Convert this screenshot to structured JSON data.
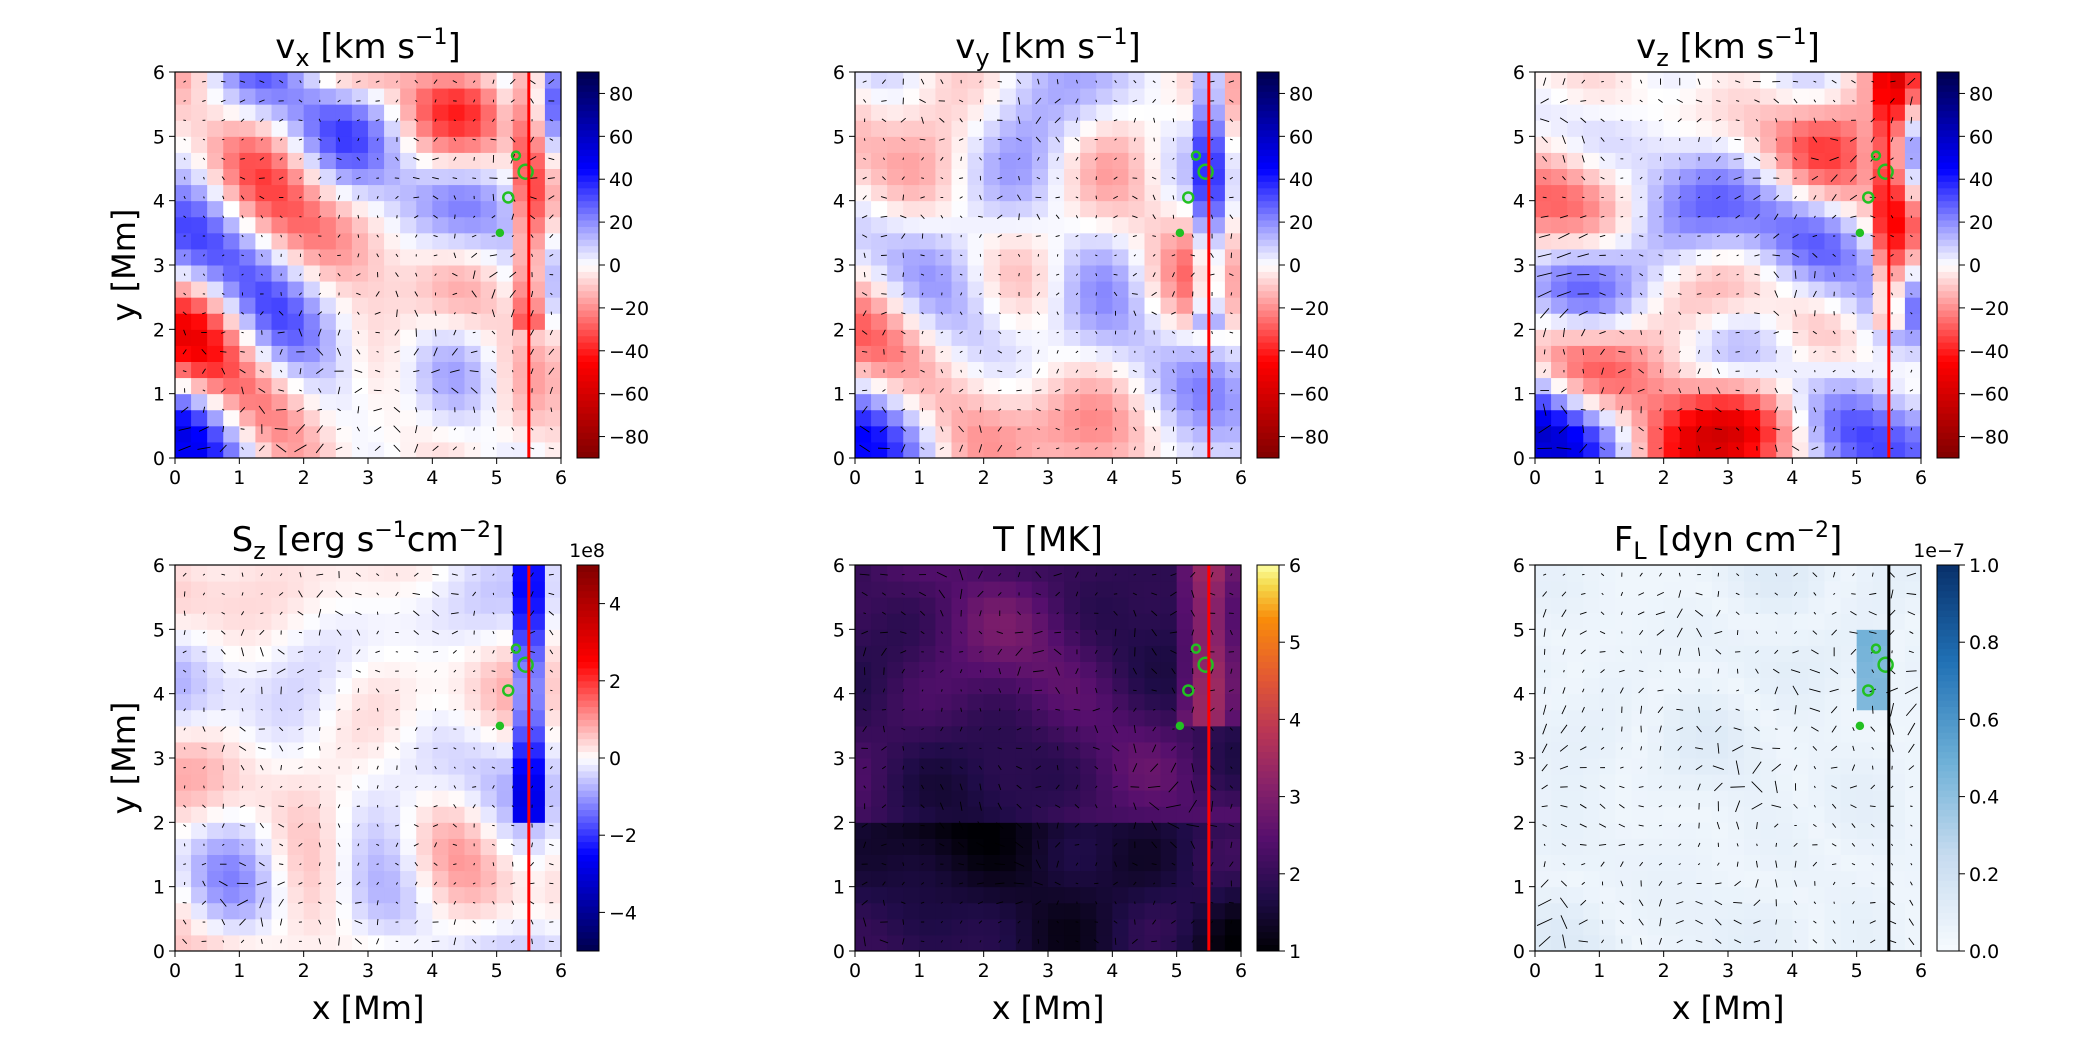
{
  "chart_data": [
    {
      "type": "heatmap",
      "title_main": "v",
      "title_sub": "x",
      "title_unit": "[km s",
      "title_exp": "−1",
      "title_end": "]",
      "ylabel": "y [Mm]",
      "xlabel": "",
      "xlim": [
        0,
        6
      ],
      "ylim": [
        0,
        6
      ],
      "xticks": [
        "0",
        "1",
        "2",
        "3",
        "4",
        "5",
        "6"
      ],
      "yticks": [
        "0",
        "1",
        "2",
        "3",
        "4",
        "5",
        "6"
      ],
      "colormap": "seismic_r",
      "colorbar": {
        "range": [
          -90,
          90
        ],
        "ticks": [
          "−80",
          "−60",
          "−40",
          "−20",
          "0",
          "20",
          "40",
          "60",
          "80"
        ],
        "tick_values": [
          -80,
          -60,
          -40,
          -20,
          0,
          20,
          40,
          60,
          80
        ],
        "offset": ""
      },
      "marker_line": {
        "x": 5.5,
        "color": "#ff0000"
      }
    },
    {
      "type": "heatmap",
      "title_main": "v",
      "title_sub": "y",
      "title_unit": "[km s",
      "title_exp": "−1",
      "title_end": "]",
      "ylabel": "",
      "xlabel": "",
      "xlim": [
        0,
        6
      ],
      "ylim": [
        0,
        6
      ],
      "xticks": [
        "0",
        "1",
        "2",
        "3",
        "4",
        "5",
        "6"
      ],
      "yticks": [
        "0",
        "1",
        "2",
        "3",
        "4",
        "5",
        "6"
      ],
      "colormap": "seismic_r",
      "colorbar": {
        "range": [
          -90,
          90
        ],
        "ticks": [
          "−80",
          "−60",
          "−40",
          "−20",
          "0",
          "20",
          "40",
          "60",
          "80"
        ],
        "tick_values": [
          -80,
          -60,
          -40,
          -20,
          0,
          20,
          40,
          60,
          80
        ],
        "offset": ""
      },
      "marker_line": {
        "x": 5.5,
        "color": "#ff0000"
      }
    },
    {
      "type": "heatmap",
      "title_main": "v",
      "title_sub": "z",
      "title_unit": "[km s",
      "title_exp": "−1",
      "title_end": "]",
      "ylabel": "",
      "xlabel": "",
      "xlim": [
        0,
        6
      ],
      "ylim": [
        0,
        6
      ],
      "xticks": [
        "0",
        "1",
        "2",
        "3",
        "4",
        "5",
        "6"
      ],
      "yticks": [
        "0",
        "1",
        "2",
        "3",
        "4",
        "5",
        "6"
      ],
      "colormap": "seismic_r",
      "colorbar": {
        "range": [
          -90,
          90
        ],
        "ticks": [
          "−80",
          "−60",
          "−40",
          "−20",
          "0",
          "20",
          "40",
          "60",
          "80"
        ],
        "tick_values": [
          -80,
          -60,
          -40,
          -20,
          0,
          20,
          40,
          60,
          80
        ],
        "offset": ""
      },
      "marker_line": {
        "x": 5.5,
        "color": "#ff0000"
      }
    },
    {
      "type": "heatmap",
      "title_main": "S",
      "title_sub": "z",
      "title_unit": "[erg s",
      "title_exp": "−1",
      "title_end": "cm",
      "title_exp2": "−2",
      "title_end2": "]",
      "ylabel": "y [Mm]",
      "xlabel": "x [Mm]",
      "xlim": [
        0,
        6
      ],
      "ylim": [
        0,
        6
      ],
      "xticks": [
        "0",
        "1",
        "2",
        "3",
        "4",
        "5",
        "6"
      ],
      "yticks": [
        "0",
        "1",
        "2",
        "3",
        "4",
        "5",
        "6"
      ],
      "colormap": "seismic",
      "colorbar": {
        "range": [
          -5,
          5
        ],
        "ticks": [
          "−4",
          "−2",
          "0",
          "2",
          "4"
        ],
        "tick_values": [
          -4,
          -2,
          0,
          2,
          4
        ],
        "offset": "1e8"
      },
      "marker_line": {
        "x": 5.5,
        "color": "#ff0000"
      }
    },
    {
      "type": "heatmap",
      "title_main": "T [MK]",
      "title_sub": "",
      "title_unit": "",
      "title_exp": "",
      "title_end": "",
      "ylabel": "",
      "xlabel": "x [Mm]",
      "xlim": [
        0,
        6
      ],
      "ylim": [
        0,
        6
      ],
      "xticks": [
        "0",
        "1",
        "2",
        "3",
        "4",
        "5",
        "6"
      ],
      "yticks": [
        "0",
        "1",
        "2",
        "3",
        "4",
        "5",
        "6"
      ],
      "colormap": "inferno",
      "colorbar": {
        "range": [
          1,
          6
        ],
        "ticks": [
          "1",
          "2",
          "3",
          "4",
          "5",
          "6"
        ],
        "tick_values": [
          1,
          2,
          3,
          4,
          5,
          6
        ],
        "offset": ""
      },
      "marker_line": {
        "x": 5.5,
        "color": "#ff0000"
      }
    },
    {
      "type": "heatmap",
      "title_main": "F",
      "title_sub": "L",
      "title_unit": "[dyn cm",
      "title_exp": "−2",
      "title_end": "]",
      "ylabel": "",
      "xlabel": "x [Mm]",
      "xlim": [
        0,
        6
      ],
      "ylim": [
        0,
        6
      ],
      "xticks": [
        "0",
        "1",
        "2",
        "3",
        "4",
        "5",
        "6"
      ],
      "yticks": [
        "0",
        "1",
        "2",
        "3",
        "4",
        "5",
        "6"
      ],
      "colormap": "Blues",
      "colorbar": {
        "range": [
          0,
          1.0
        ],
        "ticks": [
          "0.0",
          "0.2",
          "0.4",
          "0.6",
          "0.8",
          "1.0"
        ],
        "tick_values": [
          0,
          0.2,
          0.4,
          0.6,
          0.8,
          1.0
        ],
        "offset": "1e−7"
      },
      "marker_line": {
        "x": 5.5,
        "color": "#000000"
      }
    }
  ]
}
